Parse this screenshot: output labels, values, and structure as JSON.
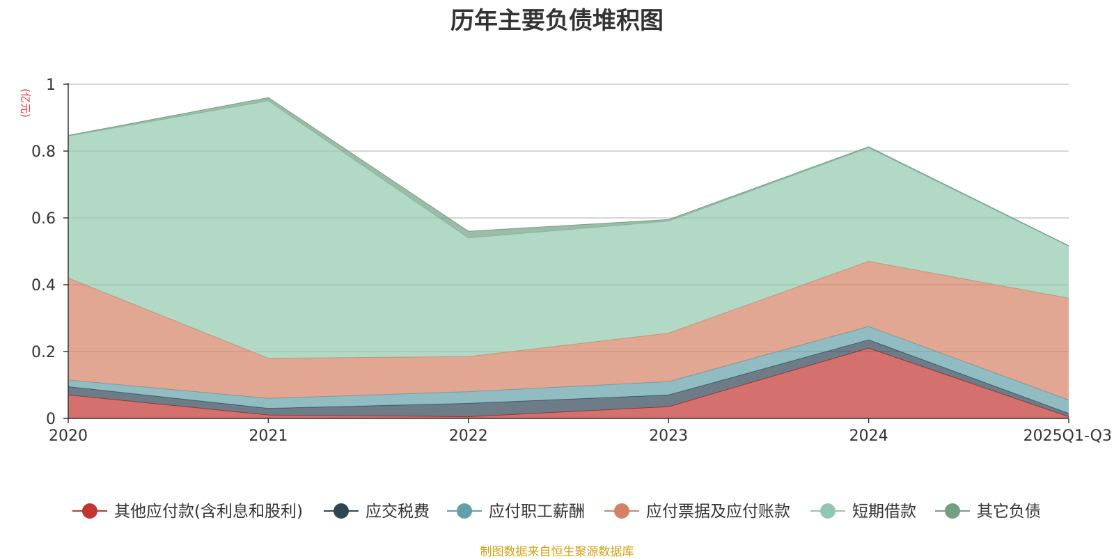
{
  "chart_data": {
    "type": "area",
    "stacked": true,
    "title": "历年主要负债堆积图",
    "unit_label": "(亿元)",
    "source": "制图数据来自恒生聚源数据库",
    "categories": [
      "2020",
      "2021",
      "2022",
      "2023",
      "2024",
      "2025Q1-Q3"
    ],
    "ylim": [
      0,
      1
    ],
    "yticks": [
      0,
      0.2,
      0.4,
      0.6,
      0.8,
      1
    ],
    "ytick_labels": [
      "0",
      "0.2",
      "0.4",
      "0.6",
      "0.8",
      "1"
    ],
    "grid": true,
    "legend_position": "bottom",
    "series": [
      {
        "name": "其他应付款(含利息和股利)",
        "color": "#c23531",
        "values": [
          0.07,
          0.01,
          0.005,
          0.035,
          0.21,
          0.005
        ]
      },
      {
        "name": "应交税费",
        "color": "#2f4554",
        "values": [
          0.025,
          0.02,
          0.04,
          0.035,
          0.025,
          0.01
        ]
      },
      {
        "name": "应付职工薪酬",
        "color": "#61a0a8",
        "values": [
          0.02,
          0.03,
          0.035,
          0.04,
          0.04,
          0.04
        ]
      },
      {
        "name": "应付票据及应付账款",
        "color": "#d48265",
        "values": [
          0.305,
          0.12,
          0.105,
          0.145,
          0.195,
          0.305
        ]
      },
      {
        "name": "短期借款",
        "color": "#91c7ae",
        "values": [
          0.425,
          0.77,
          0.355,
          0.335,
          0.34,
          0.155
        ]
      },
      {
        "name": "其它负债",
        "color": "#749f83",
        "values": [
          0.002,
          0.01,
          0.02,
          0.005,
          0.003,
          0.002
        ]
      }
    ]
  }
}
